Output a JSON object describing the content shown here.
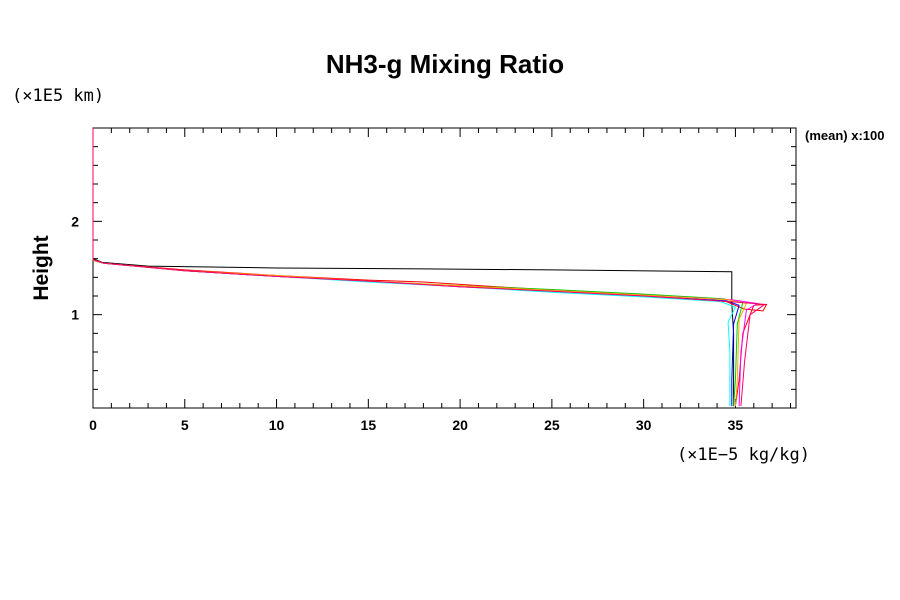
{
  "chart_data": {
    "type": "line",
    "title": "NH3-g Mixing Ratio",
    "xlabel": "",
    "ylabel": "Height",
    "x_unit_label": "(×1E−5 kg/kg)",
    "y_unit_label": "(×1E5 km)",
    "annotation": "(mean) x:100",
    "xlim": [
      0,
      38.3
    ],
    "ylim": [
      0,
      3
    ],
    "xticks": [
      0,
      5,
      10,
      15,
      20,
      25,
      30,
      35
    ],
    "xtick_labels": [
      "0",
      "5",
      "10",
      "15",
      "20",
      "25",
      "30",
      "35"
    ],
    "yticks": [
      1,
      2
    ],
    "ytick_labels": [
      "1",
      "2"
    ],
    "grid": false,
    "series": [
      {
        "color": "#000000",
        "points": [
          [
            0,
            1.6
          ],
          [
            0.5,
            1.56
          ],
          [
            3,
            1.52
          ],
          [
            10,
            1.5
          ],
          [
            18,
            1.49
          ],
          [
            25,
            1.48
          ],
          [
            34.8,
            1.46
          ],
          [
            34.8,
            1.12
          ],
          [
            34.9,
            0.8
          ],
          [
            34.9,
            0.02
          ]
        ]
      },
      {
        "color": "#ff0000",
        "points": [
          [
            0,
            1.58
          ],
          [
            0.6,
            1.55
          ],
          [
            5,
            1.48
          ],
          [
            10,
            1.42
          ],
          [
            15,
            1.37
          ],
          [
            18,
            1.35
          ],
          [
            22,
            1.3
          ],
          [
            27,
            1.24
          ],
          [
            31,
            1.19
          ],
          [
            34.5,
            1.14
          ],
          [
            35.5,
            1.06
          ],
          [
            36.5,
            1.04
          ],
          [
            36.7,
            1.11
          ],
          [
            36,
            1.1
          ],
          [
            35.4,
            0.8
          ],
          [
            35.2,
            0.3
          ],
          [
            35.0,
            0.02
          ]
        ]
      },
      {
        "color": "#00cc00",
        "points": [
          [
            0,
            1.58
          ],
          [
            0.6,
            1.55
          ],
          [
            5,
            1.47
          ],
          [
            10,
            1.41
          ],
          [
            15,
            1.36
          ],
          [
            20,
            1.31
          ],
          [
            25,
            1.27
          ],
          [
            30,
            1.22
          ],
          [
            34.3,
            1.17
          ],
          [
            35.4,
            1.13
          ],
          [
            35.1,
            0.9
          ],
          [
            35.0,
            0.3
          ],
          [
            34.9,
            0.02
          ]
        ]
      },
      {
        "color": "#0000ff",
        "points": [
          [
            0,
            1.58
          ],
          [
            0.6,
            1.55
          ],
          [
            5,
            1.47
          ],
          [
            10,
            1.41
          ],
          [
            15,
            1.36
          ],
          [
            20,
            1.3
          ],
          [
            25,
            1.25
          ],
          [
            30,
            1.2
          ],
          [
            34.5,
            1.15
          ],
          [
            35.2,
            1.1
          ],
          [
            34.9,
            0.9
          ],
          [
            34.8,
            0.3
          ],
          [
            34.8,
            0.02
          ]
        ]
      },
      {
        "color": "#00ffff",
        "points": [
          [
            0,
            1.58
          ],
          [
            0.6,
            1.55
          ],
          [
            5,
            1.47
          ],
          [
            10,
            1.41
          ],
          [
            15,
            1.35
          ],
          [
            20,
            1.3
          ],
          [
            25,
            1.24
          ],
          [
            30,
            1.19
          ],
          [
            34.2,
            1.14
          ],
          [
            35.0,
            1.08
          ],
          [
            34.6,
            0.92
          ],
          [
            34.7,
            0.6
          ],
          [
            34.7,
            0.02
          ]
        ]
      },
      {
        "color": "#ff00ff",
        "points": [
          [
            0,
            1.59
          ],
          [
            0.6,
            1.55
          ],
          [
            5,
            1.47
          ],
          [
            10,
            1.41
          ],
          [
            15,
            1.36
          ],
          [
            20,
            1.3
          ],
          [
            25,
            1.26
          ],
          [
            30,
            1.21
          ],
          [
            34.8,
            1.16
          ],
          [
            36.2,
            1.12
          ],
          [
            35.6,
            1.05
          ],
          [
            35.3,
            0.6
          ],
          [
            35.2,
            0.02
          ]
        ]
      },
      {
        "color": "#ffaa00",
        "points": [
          [
            0,
            1.58
          ],
          [
            0.6,
            1.55
          ],
          [
            5,
            1.47
          ],
          [
            10,
            1.42
          ],
          [
            15,
            1.36
          ],
          [
            20,
            1.31
          ],
          [
            25,
            1.26
          ],
          [
            30,
            1.21
          ],
          [
            34.6,
            1.16
          ],
          [
            35.6,
            1.12
          ],
          [
            35.2,
            0.95
          ],
          [
            35.1,
            0.3
          ],
          [
            35.0,
            0.02
          ]
        ]
      },
      {
        "color": "#ff0066",
        "points": [
          [
            0,
            3.0
          ],
          [
            0,
            1.59
          ],
          [
            0.6,
            1.55
          ],
          [
            5,
            1.47
          ],
          [
            10,
            1.41
          ],
          [
            15,
            1.36
          ],
          [
            20,
            1.3
          ],
          [
            25,
            1.25
          ],
          [
            30,
            1.2
          ],
          [
            34.7,
            1.14
          ],
          [
            36.6,
            1.11
          ],
          [
            35.8,
            1.0
          ],
          [
            35.5,
            0.5
          ],
          [
            35.3,
            0.02
          ]
        ]
      }
    ]
  }
}
